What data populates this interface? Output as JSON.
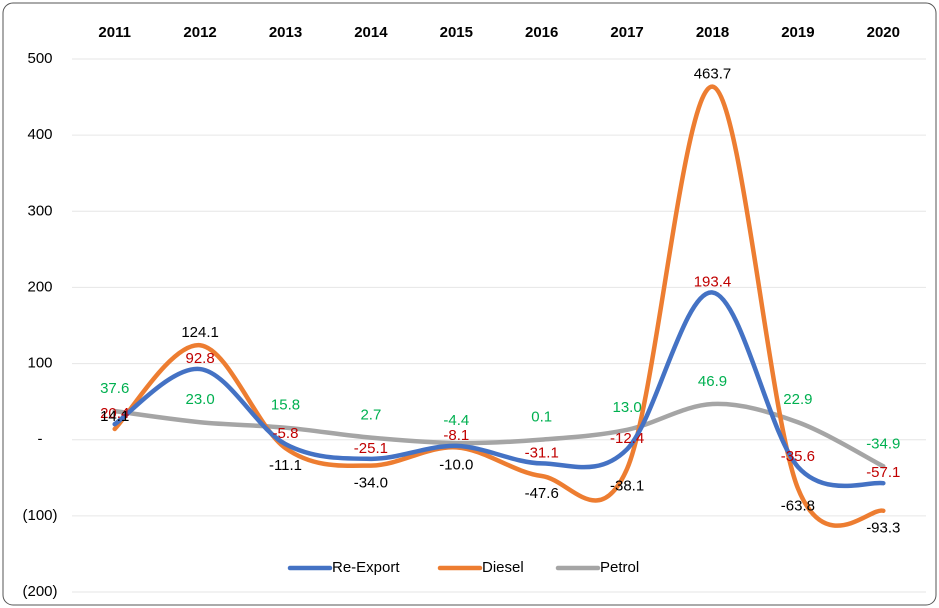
{
  "chart_data": {
    "type": "line",
    "categories": [
      "2011",
      "2012",
      "2013",
      "2014",
      "2015",
      "2016",
      "2017",
      "2018",
      "2019",
      "2020"
    ],
    "series": [
      {
        "name": "Re-Export",
        "color": "#4472c4",
        "label_color": "#c00000",
        "values": [
          20.4,
          92.8,
          -5.8,
          -25.1,
          -8.1,
          -31.1,
          -12.4,
          193.4,
          -35.6,
          -57.1
        ]
      },
      {
        "name": "Diesel",
        "color": "#ed7d31",
        "label_color": "#000000",
        "values": [
          14.1,
          124.1,
          -11.1,
          -34.0,
          -10.0,
          -47.6,
          -38.1,
          463.7,
          -63.8,
          -93.3
        ],
        "value_labels": [
          "14.1",
          "124.1",
          "-11.1",
          "-34.0",
          "-10.0",
          "-47.6",
          "-38.1",
          "463.7",
          "-63.8",
          "-93.3"
        ]
      },
      {
        "name": "Petrol",
        "color": "#a5a5a5",
        "label_color": "#00b050",
        "values": [
          37.6,
          23.0,
          15.8,
          2.7,
          -4.4,
          0.1,
          13.0,
          46.9,
          22.9,
          -34.9
        ],
        "value_labels": [
          "37.6",
          "23.0",
          "15.8",
          "2.7",
          "-4.4",
          "0.1",
          "13.0",
          "46.9",
          "22.9",
          "-34.9"
        ]
      }
    ],
    "ylim": [
      -200,
      500
    ],
    "yticks": [
      {
        "value": -200,
        "label": "(200)"
      },
      {
        "value": -100,
        "label": "(100)"
      },
      {
        "value": 0,
        "label": "-"
      },
      100,
      200,
      300,
      400,
      500
    ],
    "grid": true,
    "legend": "bottom"
  }
}
